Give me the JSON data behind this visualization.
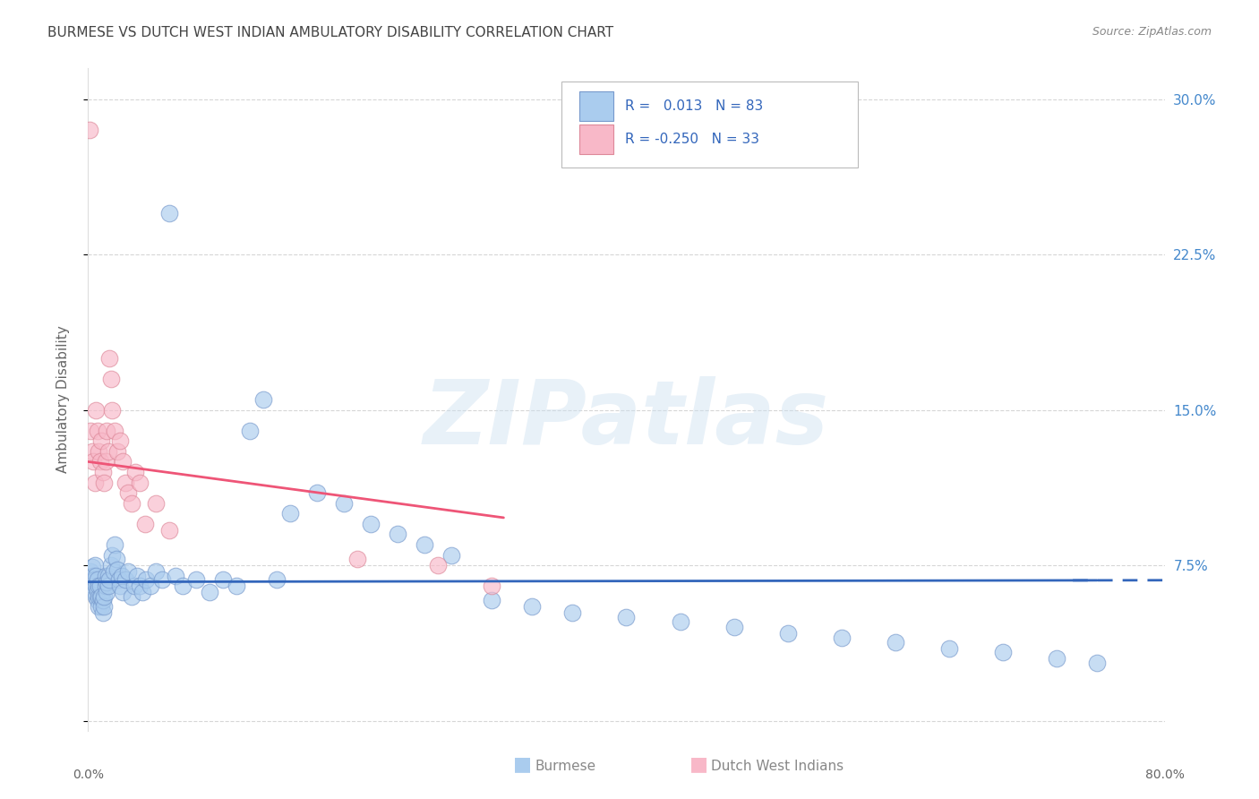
{
  "title": "BURMESE VS DUTCH WEST INDIAN AMBULATORY DISABILITY CORRELATION CHART",
  "source": "Source: ZipAtlas.com",
  "ylabel": "Ambulatory Disability",
  "xlim": [
    0.0,
    0.8
  ],
  "ylim": [
    -0.005,
    0.315
  ],
  "ytick_values": [
    0.0,
    0.075,
    0.15,
    0.225,
    0.3
  ],
  "ytick_labels": [
    "0.0%",
    "7.5%",
    "15.0%",
    "22.5%",
    "30.0%"
  ],
  "xtick_values": [
    0.0,
    0.1,
    0.2,
    0.3,
    0.4,
    0.5,
    0.6,
    0.7,
    0.8
  ],
  "watermark_text": "ZIPatlas",
  "legend_r_burmese": " 0.013",
  "legend_n_burmese": "83",
  "legend_r_dutch": "-0.250",
  "legend_n_dutch": "33",
  "burmese_face_color": "#aaccee",
  "burmese_edge_color": "#7799cc",
  "dutch_face_color": "#f8b8c8",
  "dutch_edge_color": "#dd8899",
  "burmese_line_color": "#3366bb",
  "dutch_line_color": "#ee5577",
  "grid_color": "#cccccc",
  "title_color": "#444444",
  "source_color": "#888888",
  "right_axis_color": "#4488cc",
  "ylabel_color": "#666666",
  "xlabel_color": "#666666",
  "legend_text_color": "#3366bb",
  "bottom_legend_burmese_color": "#aaccee",
  "bottom_legend_dutch_color": "#f8b8c8",
  "bottom_legend_text_color": "#888888",
  "background_color": "#ffffff",
  "burmese_x": [
    0.002,
    0.003,
    0.003,
    0.004,
    0.004,
    0.005,
    0.005,
    0.005,
    0.006,
    0.006,
    0.006,
    0.007,
    0.007,
    0.007,
    0.008,
    0.008,
    0.008,
    0.009,
    0.009,
    0.01,
    0.01,
    0.011,
    0.011,
    0.012,
    0.012,
    0.013,
    0.013,
    0.014,
    0.014,
    0.015,
    0.015,
    0.016,
    0.017,
    0.018,
    0.019,
    0.02,
    0.021,
    0.022,
    0.023,
    0.024,
    0.025,
    0.026,
    0.028,
    0.03,
    0.032,
    0.034,
    0.036,
    0.038,
    0.04,
    0.043,
    0.046,
    0.05,
    0.055,
    0.06,
    0.065,
    0.07,
    0.08,
    0.09,
    0.1,
    0.11,
    0.12,
    0.13,
    0.14,
    0.15,
    0.17,
    0.19,
    0.21,
    0.23,
    0.25,
    0.27,
    0.3,
    0.33,
    0.36,
    0.4,
    0.44,
    0.48,
    0.52,
    0.56,
    0.6,
    0.64,
    0.68,
    0.72,
    0.75
  ],
  "burmese_y": [
    0.072,
    0.068,
    0.074,
    0.065,
    0.07,
    0.075,
    0.062,
    0.068,
    0.06,
    0.065,
    0.07,
    0.058,
    0.063,
    0.068,
    0.055,
    0.06,
    0.065,
    0.06,
    0.065,
    0.055,
    0.06,
    0.052,
    0.058,
    0.055,
    0.06,
    0.065,
    0.07,
    0.062,
    0.067,
    0.07,
    0.065,
    0.068,
    0.075,
    0.08,
    0.072,
    0.085,
    0.078,
    0.073,
    0.068,
    0.065,
    0.07,
    0.062,
    0.068,
    0.072,
    0.06,
    0.065,
    0.07,
    0.065,
    0.062,
    0.068,
    0.065,
    0.072,
    0.068,
    0.245,
    0.07,
    0.065,
    0.068,
    0.062,
    0.068,
    0.065,
    0.14,
    0.155,
    0.068,
    0.1,
    0.11,
    0.105,
    0.095,
    0.09,
    0.085,
    0.08,
    0.058,
    0.055,
    0.052,
    0.05,
    0.048,
    0.045,
    0.042,
    0.04,
    0.038,
    0.035,
    0.033,
    0.03,
    0.028
  ],
  "dutch_x": [
    0.001,
    0.002,
    0.003,
    0.004,
    0.005,
    0.006,
    0.007,
    0.008,
    0.009,
    0.01,
    0.011,
    0.012,
    0.013,
    0.014,
    0.015,
    0.016,
    0.017,
    0.018,
    0.02,
    0.022,
    0.024,
    0.026,
    0.028,
    0.03,
    0.032,
    0.035,
    0.038,
    0.042,
    0.05,
    0.06,
    0.2,
    0.26,
    0.3
  ],
  "dutch_y": [
    0.285,
    0.14,
    0.13,
    0.125,
    0.115,
    0.15,
    0.14,
    0.13,
    0.125,
    0.135,
    0.12,
    0.115,
    0.125,
    0.14,
    0.13,
    0.175,
    0.165,
    0.15,
    0.14,
    0.13,
    0.135,
    0.125,
    0.115,
    0.11,
    0.105,
    0.12,
    0.115,
    0.095,
    0.105,
    0.092,
    0.078,
    0.075,
    0.065
  ]
}
